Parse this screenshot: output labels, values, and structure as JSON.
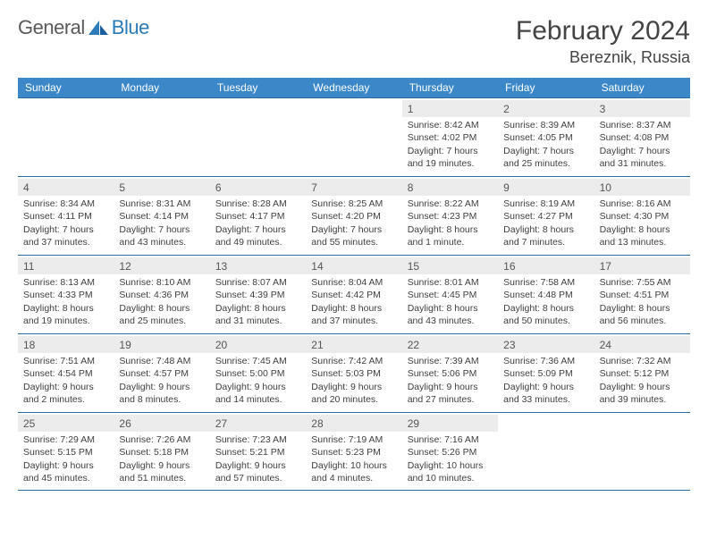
{
  "brand": {
    "part1": "General",
    "part2": "Blue"
  },
  "title": "February 2024",
  "location": "Bereznik, Russia",
  "colors": {
    "header_bg": "#3b87c8",
    "border": "#2a6aa0",
    "daynum_bg": "#ececec",
    "text": "#404040"
  },
  "weekdays": [
    "Sunday",
    "Monday",
    "Tuesday",
    "Wednesday",
    "Thursday",
    "Friday",
    "Saturday"
  ],
  "calendar": {
    "type": "table",
    "columns": 7,
    "rows": 5,
    "first_weekday_index": 4,
    "days": [
      {
        "n": 1,
        "sunrise": "8:42 AM",
        "sunset": "4:02 PM",
        "daylight": "7 hours and 19 minutes."
      },
      {
        "n": 2,
        "sunrise": "8:39 AM",
        "sunset": "4:05 PM",
        "daylight": "7 hours and 25 minutes."
      },
      {
        "n": 3,
        "sunrise": "8:37 AM",
        "sunset": "4:08 PM",
        "daylight": "7 hours and 31 minutes."
      },
      {
        "n": 4,
        "sunrise": "8:34 AM",
        "sunset": "4:11 PM",
        "daylight": "7 hours and 37 minutes."
      },
      {
        "n": 5,
        "sunrise": "8:31 AM",
        "sunset": "4:14 PM",
        "daylight": "7 hours and 43 minutes."
      },
      {
        "n": 6,
        "sunrise": "8:28 AM",
        "sunset": "4:17 PM",
        "daylight": "7 hours and 49 minutes."
      },
      {
        "n": 7,
        "sunrise": "8:25 AM",
        "sunset": "4:20 PM",
        "daylight": "7 hours and 55 minutes."
      },
      {
        "n": 8,
        "sunrise": "8:22 AM",
        "sunset": "4:23 PM",
        "daylight": "8 hours and 1 minute."
      },
      {
        "n": 9,
        "sunrise": "8:19 AM",
        "sunset": "4:27 PM",
        "daylight": "8 hours and 7 minutes."
      },
      {
        "n": 10,
        "sunrise": "8:16 AM",
        "sunset": "4:30 PM",
        "daylight": "8 hours and 13 minutes."
      },
      {
        "n": 11,
        "sunrise": "8:13 AM",
        "sunset": "4:33 PM",
        "daylight": "8 hours and 19 minutes."
      },
      {
        "n": 12,
        "sunrise": "8:10 AM",
        "sunset": "4:36 PM",
        "daylight": "8 hours and 25 minutes."
      },
      {
        "n": 13,
        "sunrise": "8:07 AM",
        "sunset": "4:39 PM",
        "daylight": "8 hours and 31 minutes."
      },
      {
        "n": 14,
        "sunrise": "8:04 AM",
        "sunset": "4:42 PM",
        "daylight": "8 hours and 37 minutes."
      },
      {
        "n": 15,
        "sunrise": "8:01 AM",
        "sunset": "4:45 PM",
        "daylight": "8 hours and 43 minutes."
      },
      {
        "n": 16,
        "sunrise": "7:58 AM",
        "sunset": "4:48 PM",
        "daylight": "8 hours and 50 minutes."
      },
      {
        "n": 17,
        "sunrise": "7:55 AM",
        "sunset": "4:51 PM",
        "daylight": "8 hours and 56 minutes."
      },
      {
        "n": 18,
        "sunrise": "7:51 AM",
        "sunset": "4:54 PM",
        "daylight": "9 hours and 2 minutes."
      },
      {
        "n": 19,
        "sunrise": "7:48 AM",
        "sunset": "4:57 PM",
        "daylight": "9 hours and 8 minutes."
      },
      {
        "n": 20,
        "sunrise": "7:45 AM",
        "sunset": "5:00 PM",
        "daylight": "9 hours and 14 minutes."
      },
      {
        "n": 21,
        "sunrise": "7:42 AM",
        "sunset": "5:03 PM",
        "daylight": "9 hours and 20 minutes."
      },
      {
        "n": 22,
        "sunrise": "7:39 AM",
        "sunset": "5:06 PM",
        "daylight": "9 hours and 27 minutes."
      },
      {
        "n": 23,
        "sunrise": "7:36 AM",
        "sunset": "5:09 PM",
        "daylight": "9 hours and 33 minutes."
      },
      {
        "n": 24,
        "sunrise": "7:32 AM",
        "sunset": "5:12 PM",
        "daylight": "9 hours and 39 minutes."
      },
      {
        "n": 25,
        "sunrise": "7:29 AM",
        "sunset": "5:15 PM",
        "daylight": "9 hours and 45 minutes."
      },
      {
        "n": 26,
        "sunrise": "7:26 AM",
        "sunset": "5:18 PM",
        "daylight": "9 hours and 51 minutes."
      },
      {
        "n": 27,
        "sunrise": "7:23 AM",
        "sunset": "5:21 PM",
        "daylight": "9 hours and 57 minutes."
      },
      {
        "n": 28,
        "sunrise": "7:19 AM",
        "sunset": "5:23 PM",
        "daylight": "10 hours and 4 minutes."
      },
      {
        "n": 29,
        "sunrise": "7:16 AM",
        "sunset": "5:26 PM",
        "daylight": "10 hours and 10 minutes."
      }
    ]
  },
  "labels": {
    "sunrise": "Sunrise: ",
    "sunset": "Sunset: ",
    "daylight": "Daylight: "
  }
}
